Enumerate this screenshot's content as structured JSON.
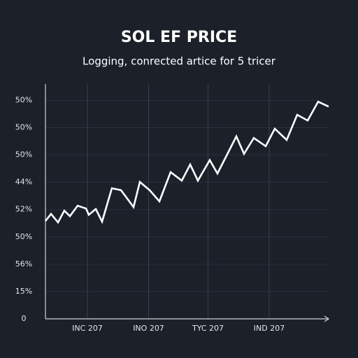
{
  "chart_data": {
    "type": "line",
    "title": "SOL EF PRICE",
    "subtitle": "Logging, conrected artice for 5 tricer",
    "x": [
      0,
      1.6,
      3.6,
      5.4,
      7,
      9.2,
      11.6,
      12.4,
      14.4,
      16.2,
      19,
      21.6,
      25.2,
      27,
      29.8,
      32.6,
      35.8,
      39,
      41.4,
      43.6,
      47,
      49.2,
      54.6,
      56.8,
      59.6,
      63,
      65.6,
      69,
      72,
      75,
      78,
      81
    ],
    "series": [
      {
        "color": "#ffffff",
        "values": [
          3.58,
          3.84,
          3.53,
          3.96,
          3.76,
          4.14,
          4.04,
          3.81,
          4.02,
          3.56,
          4.78,
          4.71,
          4.09,
          5.01,
          4.71,
          4.3,
          5.37,
          5.06,
          5.65,
          5.06,
          5.81,
          5.32,
          6.68,
          6.04,
          6.62,
          6.32,
          6.96,
          6.55,
          7.47,
          7.26,
          7.95,
          7.77
        ]
      }
    ],
    "xlim": [
      0,
      81
    ],
    "xticks": [
      {
        "value": 12,
        "label": "INC 207"
      },
      {
        "value": 29.5,
        "label": "INO 207"
      },
      {
        "value": 46.5,
        "label": "TYC 207"
      },
      {
        "value": 64,
        "label": "IND 207"
      }
    ],
    "ylim": [
      0,
      8.6
    ],
    "yticks": [
      0,
      {
        "value": 1,
        "label": "15%"
      },
      {
        "value": 2,
        "label": "56%"
      },
      {
        "value": 3,
        "label": "50%"
      },
      {
        "value": 4,
        "label": "52%"
      },
      {
        "value": 5,
        "label": "44%"
      },
      {
        "value": 6,
        "label": "50%"
      },
      {
        "value": 7,
        "label": "50%"
      },
      {
        "value": 8,
        "label": "50%"
      }
    ],
    "grid": true
  }
}
